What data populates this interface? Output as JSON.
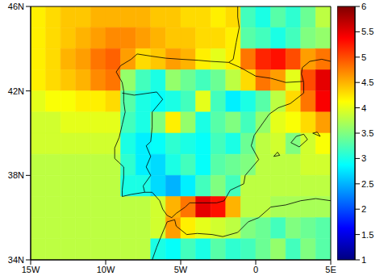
{
  "chart_data": {
    "type": "heatmap",
    "xlim": [
      -15,
      5
    ],
    "xticks": [
      {
        "value": -15,
        "label": "15W"
      },
      {
        "value": -10,
        "label": "10W"
      },
      {
        "value": -5,
        "label": "5W"
      },
      {
        "value": 0,
        "label": "0"
      },
      {
        "value": 5,
        "label": "5E"
      }
    ],
    "ylim": [
      34,
      46
    ],
    "yticks": [
      {
        "value": 34,
        "label": "34N"
      },
      {
        "value": 38,
        "label": "38N"
      },
      {
        "value": 42,
        "label": "42N"
      },
      {
        "value": 46,
        "label": "46N"
      }
    ],
    "lon": [
      -14.5,
      -13.5,
      -12.5,
      -11.5,
      -10.5,
      -9.5,
      -8.5,
      -7.5,
      -6.5,
      -5.5,
      -4.5,
      -3.5,
      -2.5,
      -1.5,
      -0.5,
      0.5,
      1.5,
      2.5,
      3.5,
      4.5
    ],
    "lat": [
      45.5,
      44.5,
      43.5,
      42.5,
      41.5,
      40.5,
      39.5,
      38.5,
      37.5,
      36.5,
      35.5,
      34.5
    ],
    "values": [
      [
        4.2,
        4.3,
        4.4,
        4.4,
        4.5,
        4.5,
        4.5,
        4.5,
        4.4,
        4.4,
        4.3,
        4.3,
        4.2,
        4.3,
        3.2,
        3.0,
        3.3,
        3.1,
        3.4,
        3.8
      ],
      [
        4.2,
        4.3,
        4.4,
        4.5,
        4.6,
        4.7,
        4.7,
        4.6,
        4.5,
        4.4,
        4.4,
        4.3,
        4.3,
        4.2,
        3.3,
        3.2,
        3.0,
        3.2,
        3.5,
        3.6
      ],
      [
        4.2,
        4.3,
        4.5,
        4.6,
        4.8,
        4.9,
        4.6,
        4.3,
        4.4,
        4.6,
        4.5,
        4.2,
        4.0,
        4.2,
        4.8,
        5.2,
        5.3,
        5.0,
        4.6,
        4.8
      ],
      [
        4.2,
        4.3,
        4.4,
        4.5,
        4.7,
        4.8,
        3.6,
        3.2,
        3.0,
        3.6,
        3.4,
        3.2,
        3.4,
        3.8,
        4.3,
        4.8,
        4.6,
        4.0,
        5.0,
        5.5
      ],
      [
        4.0,
        4.1,
        4.1,
        4.2,
        4.2,
        4.3,
        3.3,
        3.0,
        2.9,
        3.0,
        3.2,
        4.0,
        3.2,
        2.8,
        3.0,
        3.3,
        3.8,
        4.3,
        4.8,
        5.4
      ],
      [
        3.9,
        3.9,
        4.0,
        4.0,
        4.0,
        4.0,
        3.2,
        3.0,
        3.5,
        4.2,
        3.6,
        3.0,
        3.3,
        3.5,
        3.2,
        3.6,
        4.0,
        4.1,
        4.3,
        4.6
      ],
      [
        3.9,
        3.9,
        3.9,
        3.9,
        3.9,
        3.9,
        3.0,
        2.8,
        2.9,
        3.1,
        3.0,
        2.9,
        3.2,
        3.0,
        3.4,
        3.8,
        3.9,
        3.5,
        3.9,
        4.1
      ],
      [
        3.8,
        3.8,
        3.8,
        3.8,
        3.8,
        3.8,
        3.1,
        2.8,
        2.7,
        3.0,
        3.2,
        2.9,
        3.3,
        3.4,
        3.5,
        3.8,
        3.8,
        3.8,
        3.9,
        3.9
      ],
      [
        3.8,
        3.8,
        3.8,
        3.8,
        3.8,
        3.8,
        3.0,
        3.0,
        2.7,
        2.5,
        2.8,
        3.2,
        3.5,
        3.2,
        3.8,
        3.8,
        3.8,
        3.8,
        3.8,
        3.8
      ],
      [
        3.8,
        3.8,
        3.8,
        3.8,
        3.8,
        3.8,
        3.8,
        3.8,
        3.9,
        4.5,
        4.8,
        5.5,
        5.3,
        4.5,
        3.8,
        3.8,
        3.7,
        3.7,
        3.7,
        3.7
      ],
      [
        3.8,
        3.8,
        3.8,
        3.8,
        3.8,
        3.8,
        3.8,
        3.8,
        3.9,
        4.6,
        4.2,
        4.0,
        3.9,
        3.8,
        3.5,
        3.4,
        3.2,
        3.5,
        3.4,
        3.3
      ],
      [
        3.8,
        3.8,
        3.8,
        3.8,
        3.8,
        3.8,
        3.8,
        3.8,
        3.0,
        2.9,
        3.2,
        3.0,
        3.3,
        3.1,
        3.2,
        3.4,
        3.6,
        3.2,
        3.5,
        3.3
      ]
    ],
    "colorbar_range": [
      1,
      6
    ],
    "colorbar_ticks": [
      1,
      1.5,
      2,
      2.5,
      3,
      3.5,
      4,
      4.5,
      5,
      5.5,
      6
    ],
    "coastlines": [
      [
        [
          -1.2,
          46
        ],
        [
          -1.2,
          45.5
        ],
        [
          -1.1,
          45
        ],
        [
          -1.3,
          44.3
        ],
        [
          -1.5,
          43.5
        ],
        [
          -1.8,
          43.35
        ],
        [
          -3,
          43.4
        ],
        [
          -3.8,
          43.45
        ],
        [
          -5,
          43.5
        ],
        [
          -6,
          43.55
        ],
        [
          -7,
          43.65
        ],
        [
          -7.9,
          43.75
        ],
        [
          -8.3,
          43.5
        ],
        [
          -9,
          43.2
        ],
        [
          -9.3,
          42.9
        ],
        [
          -8.9,
          42.4
        ],
        [
          -8.8,
          42
        ],
        [
          -8.8,
          41.5
        ],
        [
          -8.7,
          41
        ],
        [
          -8.9,
          40.4
        ],
        [
          -9.1,
          39.8
        ],
        [
          -9.4,
          39.3
        ],
        [
          -9.4,
          38.8
        ],
        [
          -9.1,
          38.6
        ],
        [
          -8.8,
          38.4
        ],
        [
          -8.8,
          37.9
        ],
        [
          -8.9,
          37.3
        ],
        [
          -8.9,
          37
        ],
        [
          -8.3,
          37.1
        ],
        [
          -7.4,
          37.2
        ],
        [
          -6.9,
          37.2
        ],
        [
          -6.4,
          36.8
        ],
        [
          -6.2,
          36.4
        ],
        [
          -5.9,
          36.1
        ],
        [
          -5.6,
          36
        ],
        [
          -5.3,
          36.2
        ],
        [
          -4.7,
          36.5
        ],
        [
          -4.4,
          36.7
        ],
        [
          -3.5,
          36.7
        ],
        [
          -2.6,
          36.7
        ],
        [
          -2.1,
          36.8
        ],
        [
          -1.7,
          37.3
        ],
        [
          -0.8,
          37.6
        ],
        [
          -0.7,
          38
        ],
        [
          0.2,
          38.75
        ],
        [
          -0.3,
          39.4
        ],
        [
          -0.1,
          39.9
        ],
        [
          0.5,
          40.5
        ],
        [
          0.9,
          40.9
        ],
        [
          1.5,
          41.2
        ],
        [
          2.3,
          41.4
        ],
        [
          3.2,
          41.9
        ],
        [
          3.2,
          42.4
        ],
        [
          3.05,
          42.8
        ],
        [
          3.1,
          43.1
        ],
        [
          3.6,
          43.4
        ],
        [
          4.4,
          43.5
        ],
        [
          5,
          43.4
        ]
      ],
      [
        [
          -1.8,
          43.35
        ],
        [
          -1,
          43.1
        ],
        [
          0,
          42.7
        ],
        [
          1,
          42.6
        ],
        [
          2,
          42.4
        ],
        [
          3.15,
          42.45
        ]
      ],
      [
        [
          -8.9,
          41.9
        ],
        [
          -8.1,
          41.8
        ],
        [
          -6.6,
          41.95
        ],
        [
          -6.2,
          41.6
        ],
        [
          -6.9,
          41
        ],
        [
          -6.9,
          40.3
        ],
        [
          -7,
          39.6
        ],
        [
          -7.3,
          39.4
        ],
        [
          -7,
          38.9
        ],
        [
          -7.3,
          38.4
        ],
        [
          -7,
          38
        ],
        [
          -7.5,
          37.5
        ],
        [
          -7.4,
          37.2
        ]
      ],
      [
        [
          -6.9,
          34
        ],
        [
          -6.6,
          34.6
        ],
        [
          -6.2,
          35.3
        ],
        [
          -5.9,
          35.8
        ],
        [
          -5.4,
          35.9
        ],
        [
          -5.3,
          35.6
        ],
        [
          -4.6,
          35.2
        ],
        [
          -3.9,
          35.25
        ],
        [
          -2.9,
          35.2
        ],
        [
          -2.2,
          35.1
        ],
        [
          -1.2,
          35.3
        ],
        [
          -0.5,
          35.8
        ],
        [
          0.2,
          36
        ],
        [
          1,
          36.5
        ],
        [
          2,
          36.6
        ],
        [
          3,
          36.8
        ],
        [
          4,
          36.9
        ],
        [
          5,
          36.8
        ]
      ],
      [
        [
          2.35,
          39.55
        ],
        [
          2.9,
          39.35
        ],
        [
          3.45,
          39.7
        ],
        [
          3.2,
          39.95
        ],
        [
          2.7,
          39.85
        ],
        [
          2.35,
          39.55
        ]
      ],
      [
        [
          3.8,
          40
        ],
        [
          4.3,
          39.85
        ],
        [
          4.1,
          40.05
        ],
        [
          3.8,
          40
        ]
      ],
      [
        [
          1.2,
          38.9
        ],
        [
          1.6,
          38.95
        ],
        [
          1.45,
          39.1
        ],
        [
          1.2,
          38.9
        ]
      ]
    ]
  }
}
